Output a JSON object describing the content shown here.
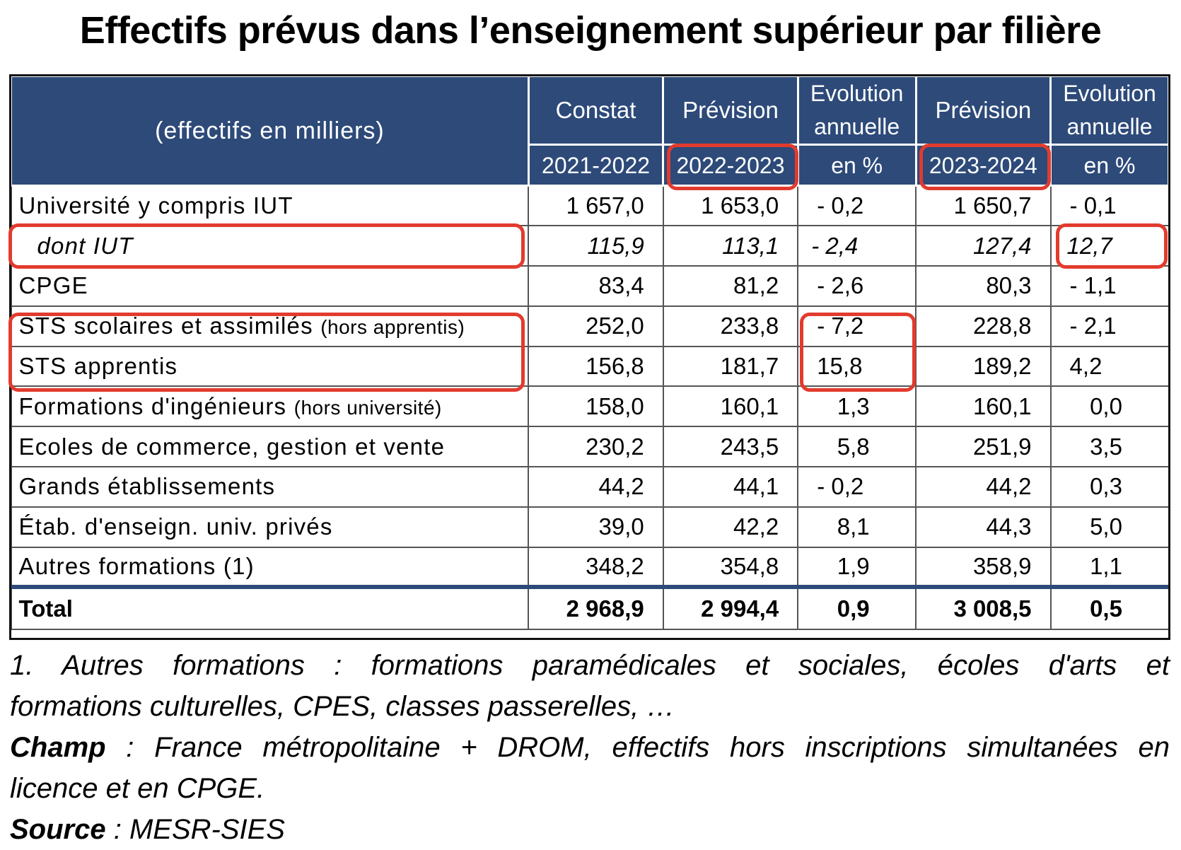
{
  "title": "Effectifs prévus dans l’enseignement supérieur par filière",
  "header": {
    "corner": "(effectifs en milliers)",
    "col1_top": "Constat",
    "col1_bottom": "2021-2022",
    "col2_top": "Prévision",
    "col2_bottom": "2022-2023",
    "col3_top_line1": "Evolution",
    "col3_top_line2": "annuelle",
    "col3_bottom": "en %",
    "col4_top": "Prévision",
    "col4_bottom": "2023-2024",
    "col5_top_line1": "Evolution",
    "col5_top_line2": "annuelle",
    "col5_bottom": "en %"
  },
  "rows": [
    {
      "label": "Université y compris IUT",
      "sub": "",
      "c2122": "1 657,0",
      "c2223": "1 653,0",
      "evo1": "- 0,2",
      "c2324": "1 650,7",
      "evo2": "- 0,1"
    },
    {
      "label": "dont IUT",
      "sub": "",
      "c2122": "115,9",
      "c2223": "113,1",
      "evo1": "- 2,4",
      "c2324": "127,4",
      "evo2": "12,7"
    },
    {
      "label": "CPGE",
      "sub": "",
      "c2122": "83,4",
      "c2223": "81,2",
      "evo1": "- 2,6",
      "c2324": "80,3",
      "evo2": "- 1,1"
    },
    {
      "label": "STS scolaires et assimilés",
      "sub": "(hors apprentis)",
      "c2122": "252,0",
      "c2223": "233,8",
      "evo1": "- 7,2",
      "c2324": "228,8",
      "evo2": "- 2,1"
    },
    {
      "label": "STS apprentis",
      "sub": "",
      "c2122": "156,8",
      "c2223": "181,7",
      "evo1": "15,8",
      "c2324": "189,2",
      "evo2": "4,2"
    },
    {
      "label": "Formations d'ingénieurs",
      "sub": "(hors université)",
      "c2122": "158,0",
      "c2223": "160,1",
      "evo1": "1,3",
      "c2324": "160,1",
      "evo2": "0,0"
    },
    {
      "label": "Ecoles de commerce, gestion et vente",
      "sub": "",
      "c2122": "230,2",
      "c2223": "243,5",
      "evo1": "5,8",
      "c2324": "251,9",
      "evo2": "3,5"
    },
    {
      "label": "Grands établissements",
      "sub": "",
      "c2122": "44,2",
      "c2223": "44,1",
      "evo1": "- 0,2",
      "c2324": "44,2",
      "evo2": "0,3"
    },
    {
      "label": "Étab. d'enseign. univ. privés",
      "sub": "",
      "c2122": "39,0",
      "c2223": "42,2",
      "evo1": "8,1",
      "c2324": "44,3",
      "evo2": "5,0"
    },
    {
      "label": "Autres formations (1)",
      "sub": "",
      "c2122": "348,2",
      "c2223": "354,8",
      "evo1": "1,9",
      "c2324": "358,9",
      "evo2": "1,1"
    }
  ],
  "total": {
    "label": "Total",
    "c2122": "2 968,9",
    "c2223": "2 994,4",
    "evo1": "0,9",
    "c2324": "3 008,5",
    "evo2": "0,5"
  },
  "notes": {
    "note1_line1": "1. Autres formations : formations paramédicales et sociales, écoles d'arts et",
    "note1_line2": "formations culturelles, CPES, classes passerelles, …",
    "champ_label": "Champ",
    "champ_text_line1": " : France métropolitaine + DROM, effectifs hors inscriptions simultanées en",
    "champ_text_line2": "licence et en CPGE.",
    "source_label": "Source",
    "source_text": " : MESR-SIES"
  },
  "colors": {
    "header_bg": "#2d4a79",
    "highlight": "#e23b2e"
  }
}
